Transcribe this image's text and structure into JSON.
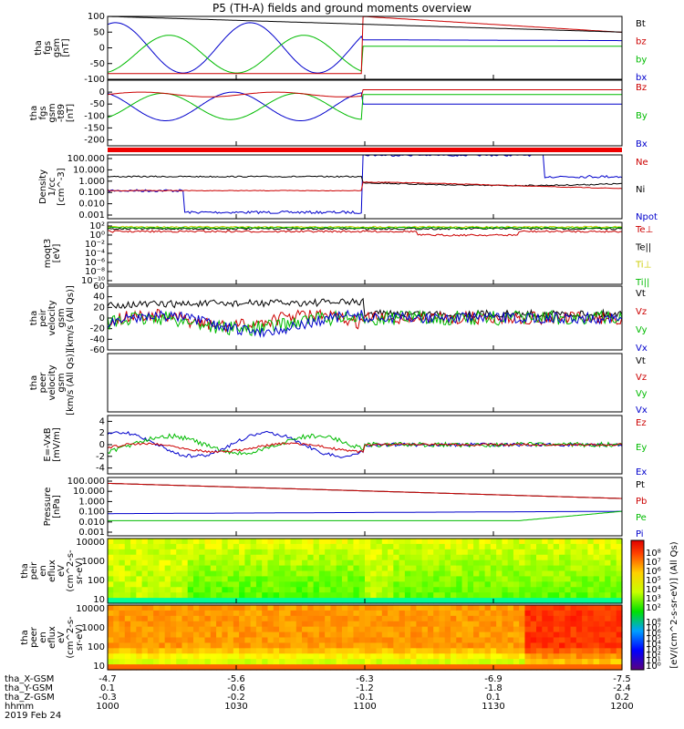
{
  "title": "P5 (TH-A) fields and ground moments overview",
  "chart_data": [
    {
      "id": "fgs_gsm",
      "type": "line",
      "ylabel": [
        "tha",
        "fgs",
        "gsm",
        "[nT]"
      ],
      "ylim": [
        -100,
        100
      ],
      "yticks": [
        100,
        50,
        0,
        -50,
        -100
      ],
      "legend": [
        {
          "name": "Bt",
          "color": "#000000"
        },
        {
          "name": "bz",
          "color": "#cc0000"
        },
        {
          "name": "by",
          "color": "#00bb00"
        },
        {
          "name": "bx",
          "color": "#0000cc"
        }
      ]
    },
    {
      "id": "fgs_gsm_t89",
      "type": "line",
      "ylabel": [
        "tha",
        "fgs",
        "gsm",
        "-t89",
        "[nT]"
      ],
      "ylim": [
        -225,
        50
      ],
      "yticks": [
        0,
        -50,
        -100,
        -150,
        -200
      ],
      "legend": [
        {
          "name": "Bz",
          "color": "#cc0000"
        },
        {
          "name": "By",
          "color": "#00bb00"
        },
        {
          "name": "Bx",
          "color": "#0000cc"
        }
      ]
    },
    {
      "id": "density",
      "type": "line",
      "scale": "log",
      "ylabel": [
        "Density",
        "1/cc",
        "[cm^-3]"
      ],
      "ylim": [
        0.001,
        100
      ],
      "yticks": [
        "100.000",
        "10.000",
        "1.000",
        "0.100",
        "0.010",
        "0.001"
      ],
      "legend": [
        {
          "name": "Ne",
          "color": "#cc0000"
        },
        {
          "name": "Ni",
          "color": "#000000"
        },
        {
          "name": "Npot",
          "color": "#0000cc"
        }
      ]
    },
    {
      "id": "temperature",
      "type": "line",
      "scale": "log",
      "ylabel": [
        "moqt3",
        "[eV]"
      ],
      "yticks": [
        "10²",
        "10⁰",
        "10⁻²",
        "10⁻⁴",
        "10⁻⁶",
        "10⁻⁸",
        "10⁻¹⁰"
      ],
      "legend": [
        {
          "name": "Te⊥",
          "color": "#cc0000"
        },
        {
          "name": "Te||",
          "color": "#000000"
        },
        {
          "name": "Ti⊥",
          "color": "#cccc00"
        },
        {
          "name": "Ti||",
          "color": "#00bb00"
        }
      ]
    },
    {
      "id": "peir_velocity",
      "type": "line",
      "ylabel": [
        "tha",
        "peir",
        "velocity",
        "gsm",
        "[km/s (All Qs)]"
      ],
      "ylim": [
        -60,
        60
      ],
      "yticks": [
        60,
        40,
        20,
        0,
        -20,
        -40,
        -60
      ],
      "legend": [
        {
          "name": "Vt",
          "color": "#000000"
        },
        {
          "name": "Vz",
          "color": "#cc0000"
        },
        {
          "name": "Vy",
          "color": "#00bb00"
        },
        {
          "name": "Vx",
          "color": "#0000cc"
        }
      ]
    },
    {
      "id": "peer_velocity",
      "type": "line",
      "ylabel": [
        "tha",
        "peer",
        "velocity",
        "gsm",
        "[km/s (All Qs)]"
      ],
      "legend": [
        {
          "name": "Vt",
          "color": "#000000"
        },
        {
          "name": "Vz",
          "color": "#cc0000"
        },
        {
          "name": "Vy",
          "color": "#00bb00"
        },
        {
          "name": "Vx",
          "color": "#0000cc"
        }
      ]
    },
    {
      "id": "efield",
      "type": "line",
      "ylabel": [
        "E=-VxB",
        "[mV/m]"
      ],
      "ylim": [
        -5,
        5
      ],
      "yticks": [
        4,
        2,
        0,
        -2,
        -4
      ],
      "legend": [
        {
          "name": "Ez",
          "color": "#cc0000"
        },
        {
          "name": "Ey",
          "color": "#00bb00"
        },
        {
          "name": "Ex",
          "color": "#0000cc"
        }
      ]
    },
    {
      "id": "pressure",
      "type": "line",
      "scale": "log",
      "ylabel": [
        "Pressure",
        "[nPa]"
      ],
      "ylim": [
        0.001,
        100
      ],
      "yticks": [
        "100.000",
        "10.000",
        "1.000",
        "0.100",
        "0.010",
        "0.001"
      ],
      "legend": [
        {
          "name": "Pt",
          "color": "#000000"
        },
        {
          "name": "Pb",
          "color": "#cc0000"
        },
        {
          "name": "Pe",
          "color": "#00bb00"
        },
        {
          "name": "Pi",
          "color": "#0000cc"
        }
      ]
    },
    {
      "id": "peir_eflux",
      "type": "heatmap",
      "ylabel": [
        "tha",
        "peir",
        "en",
        "eflux",
        "eV",
        "(cm^2-s-",
        "sr-eV)"
      ],
      "yticks": [
        10000,
        1000,
        100,
        10
      ],
      "colorbar_ticks": [
        "10⁸",
        "10⁷",
        "10⁶",
        "10⁵",
        "10⁴",
        "10³",
        "10²"
      ]
    },
    {
      "id": "peer_eflux",
      "type": "heatmap",
      "ylabel": [
        "tha",
        "peer",
        "en",
        "eflux",
        "eV",
        "(cm^2-s-",
        "sr-eV)"
      ],
      "yticks": [
        10000,
        1000,
        100,
        10
      ],
      "colorbar_ticks": [
        "10⁸",
        "10⁷",
        "10⁶",
        "10⁵",
        "10⁴",
        "10³",
        "10²",
        "10¹",
        "10⁰"
      ]
    }
  ],
  "colorbar_label": "[eV/(cm^2-s-sr-eV)] (All Qs)",
  "xaxis": {
    "rows": [
      {
        "label": "tha_X-GSM",
        "values": [
          "-4.7",
          "-5.6",
          "-6.3",
          "-6.9",
          "-7.5"
        ]
      },
      {
        "label": "tha_Y-GSM",
        "values": [
          "0.1",
          "-0.6",
          "-1.2",
          "-1.8",
          "-2.4"
        ]
      },
      {
        "label": "tha_Z-GSM",
        "values": [
          "-0.3",
          "-0.2",
          "-0.1",
          "0.1",
          "0.2"
        ]
      },
      {
        "label": "hhmm",
        "values": [
          "1000",
          "1030",
          "1100",
          "1130",
          "1200"
        ]
      }
    ],
    "date": "2019 Feb 24"
  },
  "colors": {
    "black": "#000000",
    "red": "#cc0000",
    "green": "#00bb00",
    "blue": "#0000cc",
    "yellow": "#cccc00"
  }
}
